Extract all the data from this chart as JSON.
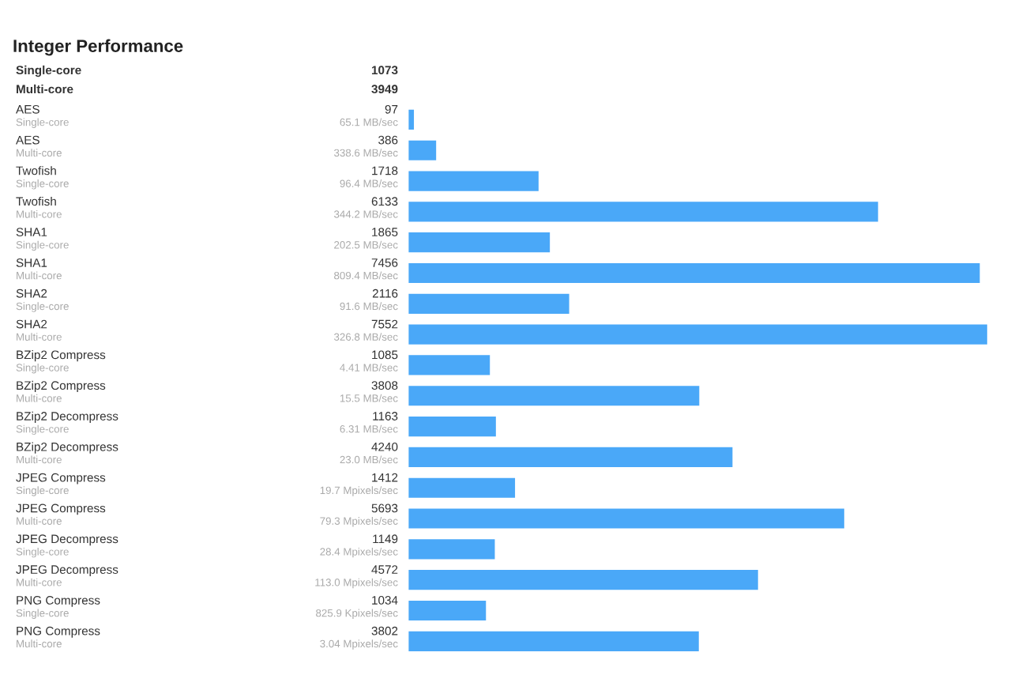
{
  "chart_data": {
    "type": "bar",
    "orientation": "horizontal",
    "title": "Integer Performance",
    "annotations": [
      "Single-core",
      "1073",
      "Multi-core",
      "3949"
    ],
    "categories": [
      "AES\nSingle-core\n65.1 MB/sec",
      "AES\nMulti-core\n338.6 MB/sec",
      "Twofish\nSingle-core\n96.4 MB/sec",
      "Twofish\nMulti-core\n344.2 MB/sec",
      "SHA1\nSingle-core\n202.5 MB/sec",
      "SHA1\nMulti-core\n809.4 MB/sec",
      "SHA2\nSingle-core\n91.6 MB/sec",
      "SHA2\nMulti-core\n326.8 MB/sec",
      "BZip2 Compress\nSingle-core\n4.41 MB/sec",
      "BZip2 Compress\nMulti-core\n15.5 MB/sec",
      "BZip2 Decompress\nSingle-core\n6.31 MB/sec",
      "BZip2 Decompress\nMulti-core\n23.0 MB/sec",
      "JPEG Compress\nSingle-core\n19.7 Mpixels/sec",
      "JPEG Compress\nMulti-core\n79.3 Mpixels/sec",
      "JPEG Decompress\nSingle-core\n28.4 Mpixels/sec",
      "JPEG Decompress\nMulti-core\n113.0 Mpixels/sec",
      "PNG Compress\nSingle-core\n825.9 Kpixels/sec",
      "PNG Compress\nMulti-core\n3.04 Mpixels/sec"
    ],
    "values": [
      97,
      386,
      1718,
      6133,
      1865,
      7456,
      2116,
      7552,
      1085,
      3808,
      1163,
      4240,
      1412,
      5693,
      1149,
      4572,
      1034,
      3802
    ],
    "data_labels": true,
    "color": "#4aa8f8",
    "xlim": [
      0,
      7560
    ]
  }
}
